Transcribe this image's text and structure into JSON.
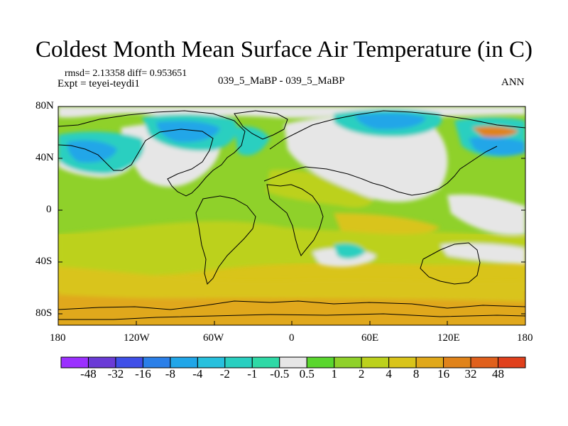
{
  "title": "Coldest Month Mean Surface Air Temperature (in C)",
  "stats": "rmsd= 2.13358 diff= 0.953651",
  "experiment": "Expt = teyei-teydi1",
  "case": "039_5_MaBP - 039_5_MaBP",
  "season": "ANN",
  "lat_labels": [
    "80N",
    "40N",
    "0",
    "40S",
    "80S"
  ],
  "lon_labels": [
    "180",
    "120W",
    "60W",
    "0",
    "60E",
    "120E",
    "180"
  ],
  "colorbar": {
    "labels": [
      "-48",
      "-32",
      "-16",
      "-8",
      "-4",
      "-2",
      "-1",
      "-0.5",
      "0.5",
      "1",
      "2",
      "4",
      "8",
      "16",
      "32",
      "48"
    ],
    "colors": [
      "#9b30ff",
      "#6a3bd6",
      "#3f4fe8",
      "#2b7fe8",
      "#21a6e8",
      "#27c0dd",
      "#29cfc0",
      "#2fd9a6",
      "#e6e6e6",
      "#5ad62e",
      "#8fd12a",
      "#bcd11c",
      "#d9c41a",
      "#e0a81a",
      "#e0831a",
      "#e0601c",
      "#e0401c"
    ]
  },
  "colors": {
    "no_change": "#e6e6e6",
    "green": "#8fd12a",
    "yellow_green": "#bcd11c",
    "yellow": "#d9c41a",
    "orange": "#e0a81a",
    "cyan": "#29cfc0",
    "blue": "#21a6e8"
  }
}
